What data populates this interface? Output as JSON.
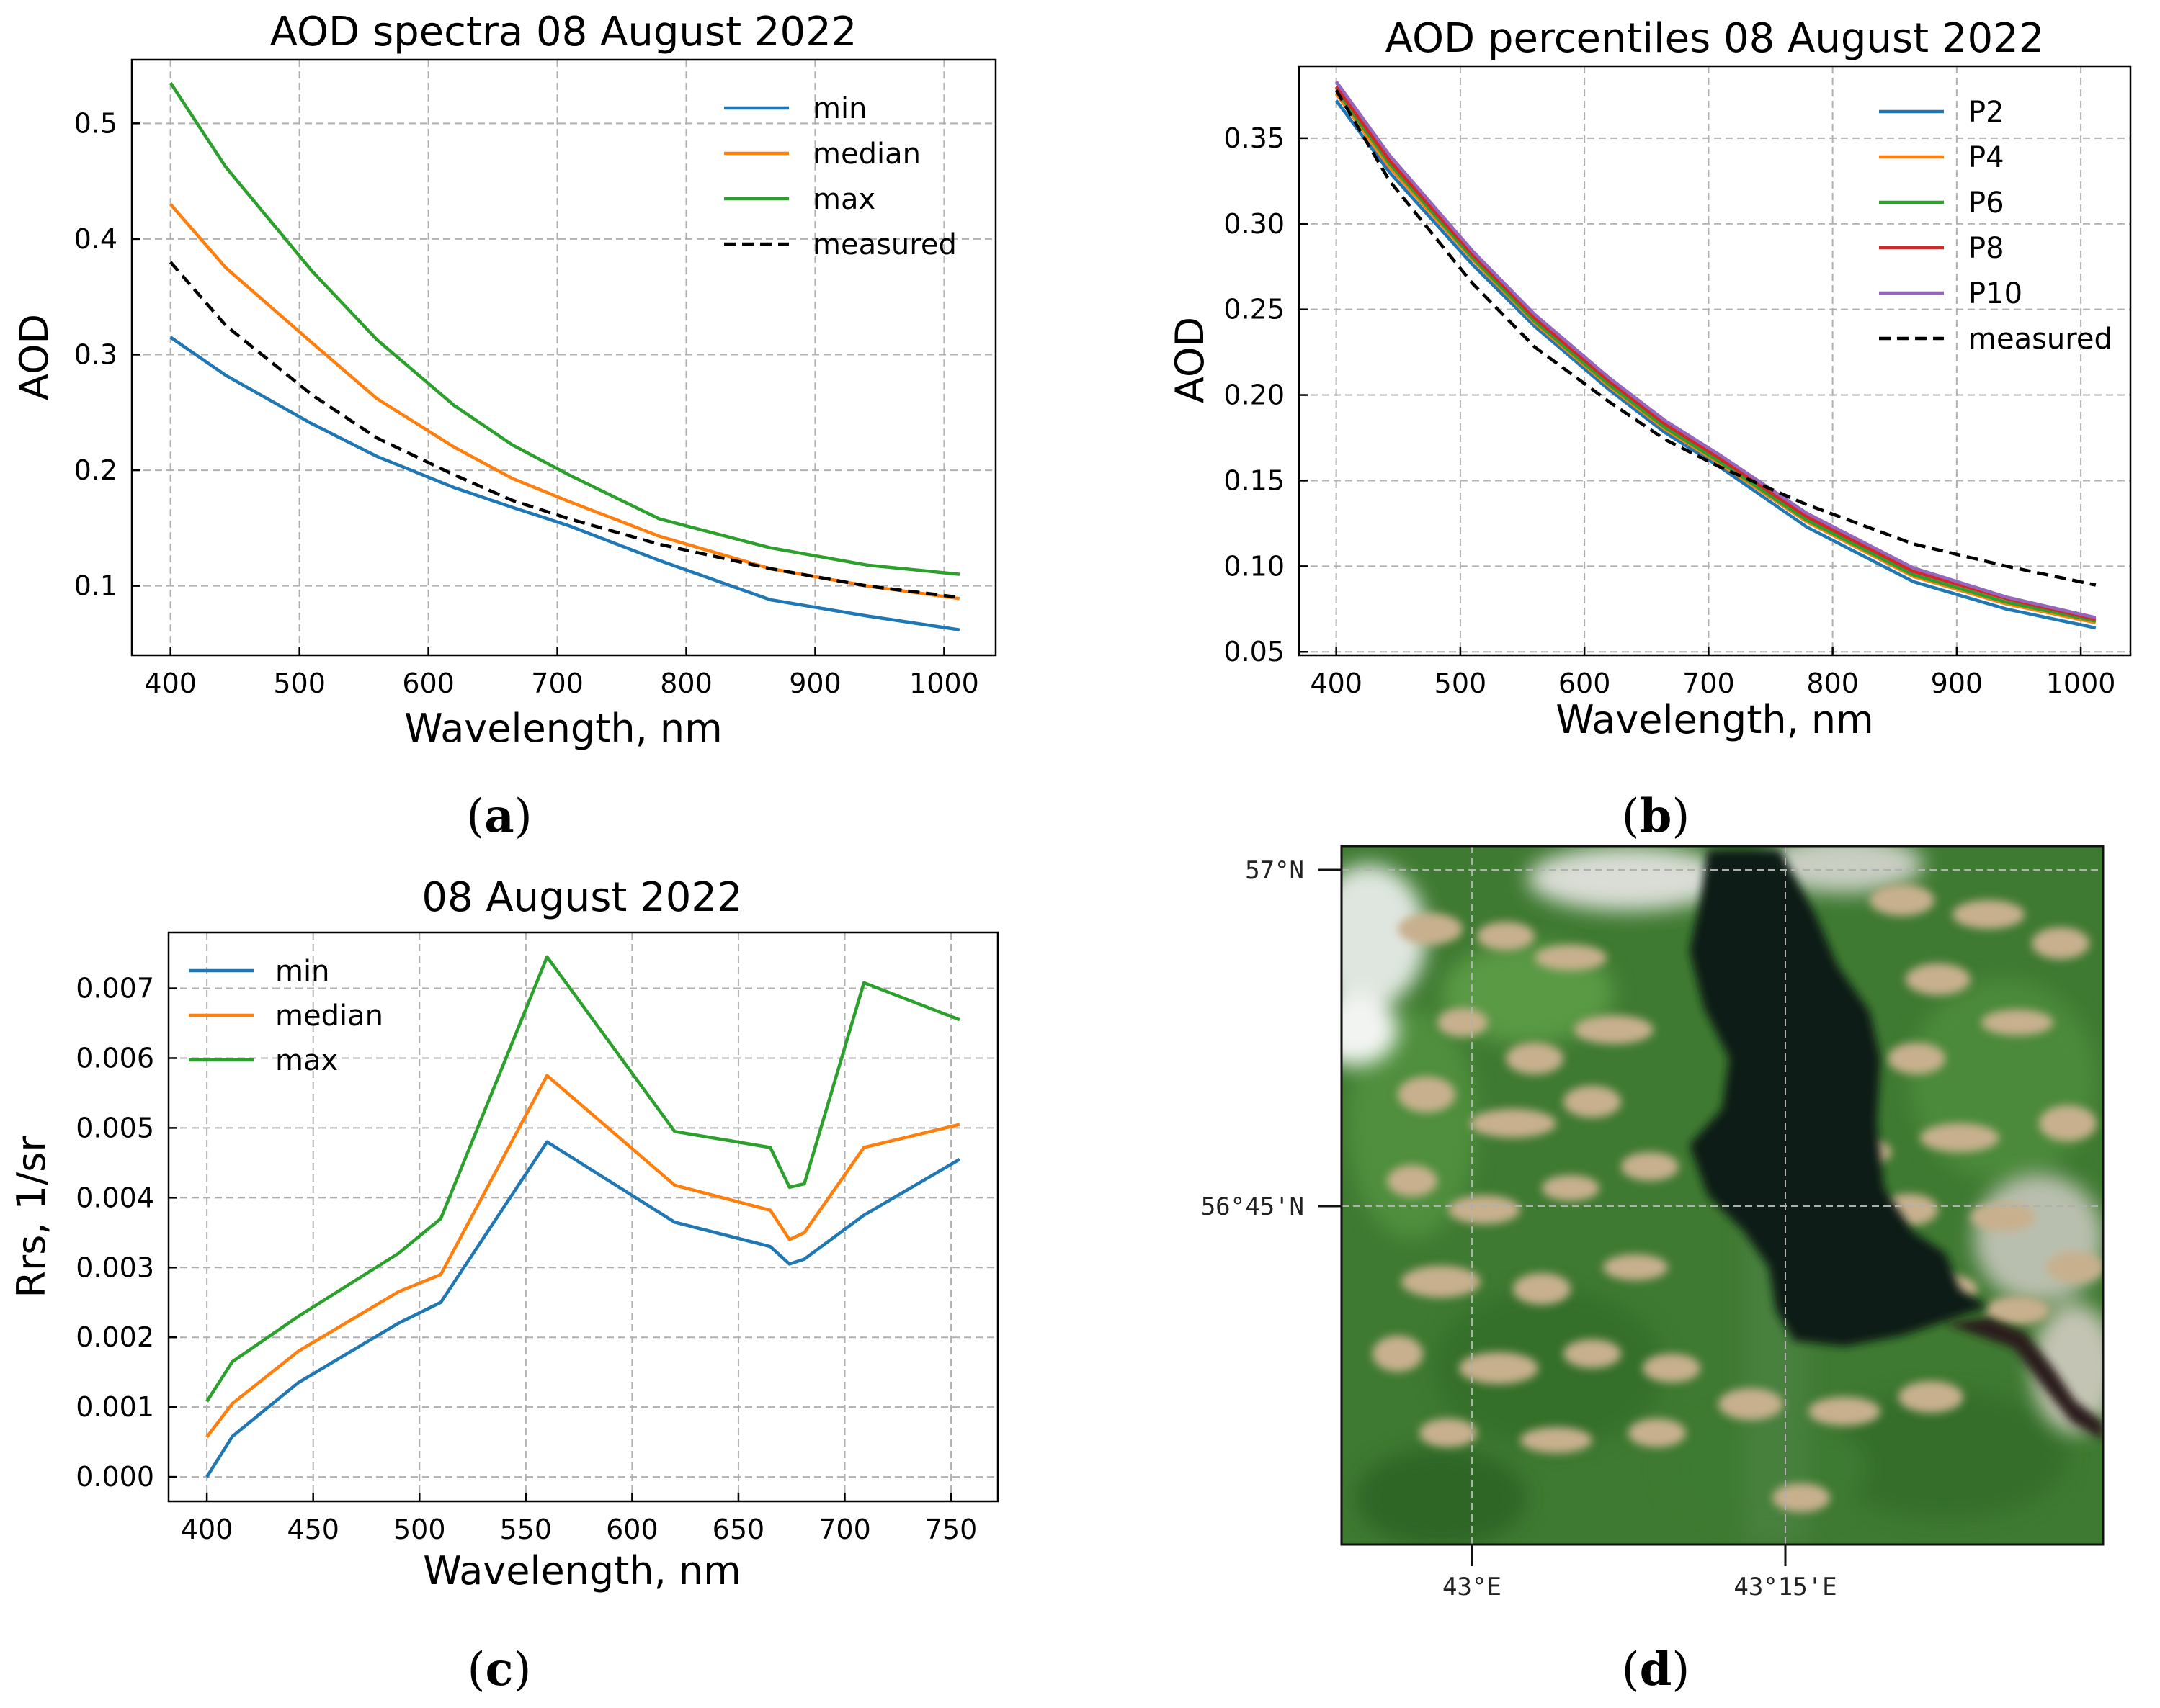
{
  "colors": {
    "blue": "#1f77b4",
    "orange": "#ff7f0e",
    "green": "#2ca02c",
    "red": "#d62728",
    "purple": "#9467bd",
    "black": "#000000"
  },
  "captions": {
    "a": "a",
    "b": "b",
    "c": "c",
    "d": "d"
  },
  "chart_data": [
    {
      "id": "a",
      "type": "line",
      "title": "AOD spectra 08 August 2022",
      "xlabel": "Wavelength, nm",
      "ylabel": "AOD",
      "xlim": [
        370,
        1040
      ],
      "ylim": [
        0.04,
        0.555
      ],
      "xticks": [
        400,
        500,
        600,
        700,
        800,
        900,
        1000
      ],
      "xtick_labels": [
        "400",
        "500",
        "600",
        "700",
        "800",
        "900",
        "1000"
      ],
      "yticks": [
        0.1,
        0.2,
        0.3,
        0.4,
        0.5
      ],
      "ytick_labels": [
        "0.1",
        "0.2",
        "0.3",
        "0.4",
        "0.5"
      ],
      "legend_position": "top-right",
      "series": [
        {
          "name": "min",
          "color": "#1f77b4",
          "x": [
            400,
            443,
            510,
            560,
            620,
            665,
            709,
            779,
            865,
            940,
            1012
          ],
          "y": [
            0.315,
            0.282,
            0.24,
            0.212,
            0.185,
            0.168,
            0.152,
            0.122,
            0.088,
            0.074,
            0.062
          ]
        },
        {
          "name": "median",
          "color": "#ff7f0e",
          "x": [
            400,
            443,
            510,
            560,
            620,
            665,
            709,
            779,
            865,
            940,
            1012
          ],
          "y": [
            0.43,
            0.375,
            0.31,
            0.262,
            0.22,
            0.193,
            0.173,
            0.143,
            0.115,
            0.1,
            0.089
          ]
        },
        {
          "name": "max",
          "color": "#2ca02c",
          "x": [
            400,
            443,
            510,
            560,
            620,
            665,
            709,
            779,
            865,
            940,
            1012
          ],
          "y": [
            0.535,
            0.462,
            0.372,
            0.313,
            0.256,
            0.222,
            0.196,
            0.158,
            0.133,
            0.118,
            0.11
          ]
        },
        {
          "name": "measured",
          "color": "#000000",
          "dashed": true,
          "x": [
            400,
            443,
            510,
            560,
            620,
            665,
            709,
            779,
            865,
            940,
            1012
          ],
          "y": [
            0.38,
            0.325,
            0.265,
            0.228,
            0.196,
            0.174,
            0.158,
            0.136,
            0.115,
            0.1,
            0.09
          ]
        }
      ]
    },
    {
      "id": "b",
      "type": "line",
      "title": "AOD percentiles 08 August 2022",
      "xlabel": "Wavelength, nm",
      "ylabel": "AOD",
      "xlim": [
        370,
        1040
      ],
      "ylim": [
        0.048,
        0.392
      ],
      "xticks": [
        400,
        500,
        600,
        700,
        800,
        900,
        1000
      ],
      "xtick_labels": [
        "400",
        "500",
        "600",
        "700",
        "800",
        "900",
        "1000"
      ],
      "yticks": [
        0.05,
        0.1,
        0.15,
        0.2,
        0.25,
        0.3,
        0.35
      ],
      "ytick_labels": [
        "0.05",
        "0.10",
        "0.15",
        "0.20",
        "0.25",
        "0.30",
        "0.35"
      ],
      "legend_position": "top-right",
      "series": [
        {
          "name": "P2",
          "color": "#1f77b4",
          "x": [
            400,
            443,
            510,
            560,
            620,
            665,
            709,
            779,
            865,
            940,
            1012
          ],
          "y": [
            0.372,
            0.33,
            0.276,
            0.24,
            0.203,
            0.178,
            0.158,
            0.123,
            0.091,
            0.075,
            0.064
          ]
        },
        {
          "name": "P4",
          "color": "#ff7f0e",
          "x": [
            400,
            443,
            510,
            560,
            620,
            665,
            709,
            779,
            865,
            940,
            1012
          ],
          "y": [
            0.376,
            0.333,
            0.279,
            0.242,
            0.205,
            0.18,
            0.16,
            0.126,
            0.094,
            0.078,
            0.067
          ]
        },
        {
          "name": "P6",
          "color": "#2ca02c",
          "x": [
            400,
            443,
            510,
            560,
            620,
            665,
            709,
            779,
            865,
            940,
            1012
          ],
          "y": [
            0.378,
            0.335,
            0.28,
            0.243,
            0.206,
            0.181,
            0.161,
            0.127,
            0.095,
            0.079,
            0.068
          ]
        },
        {
          "name": "P8",
          "color": "#d62728",
          "x": [
            400,
            443,
            510,
            560,
            620,
            665,
            709,
            779,
            865,
            940,
            1012
          ],
          "y": [
            0.38,
            0.337,
            0.282,
            0.245,
            0.208,
            0.183,
            0.163,
            0.129,
            0.097,
            0.081,
            0.069
          ]
        },
        {
          "name": "P10",
          "color": "#9467bd",
          "x": [
            400,
            443,
            510,
            560,
            620,
            665,
            709,
            779,
            865,
            940,
            1012
          ],
          "y": [
            0.383,
            0.34,
            0.284,
            0.247,
            0.21,
            0.185,
            0.165,
            0.131,
            0.099,
            0.082,
            0.07
          ]
        },
        {
          "name": "measured",
          "color": "#000000",
          "dashed": true,
          "x": [
            400,
            443,
            510,
            560,
            620,
            665,
            709,
            779,
            865,
            940,
            1012
          ],
          "y": [
            0.378,
            0.325,
            0.265,
            0.228,
            0.196,
            0.174,
            0.158,
            0.136,
            0.113,
            0.1,
            0.089
          ]
        }
      ]
    },
    {
      "id": "c",
      "type": "line",
      "title": "08 August 2022",
      "xlabel": "Wavelength, nm",
      "ylabel": "Rrs, 1/sr",
      "xlim": [
        382,
        772
      ],
      "ylim": [
        -0.00035,
        0.0078
      ],
      "xticks": [
        400,
        450,
        500,
        550,
        600,
        650,
        700,
        750
      ],
      "xtick_labels": [
        "400",
        "450",
        "500",
        "550",
        "600",
        "650",
        "700",
        "750"
      ],
      "yticks": [
        0,
        0.001,
        0.002,
        0.003,
        0.004,
        0.005,
        0.006,
        0.007
      ],
      "ytick_labels": [
        "0.000",
        "0.001",
        "0.002",
        "0.003",
        "0.004",
        "0.005",
        "0.006",
        "0.007"
      ],
      "legend_position": "top-left",
      "series": [
        {
          "name": "min",
          "color": "#1f77b4",
          "x": [
            400,
            412,
            443,
            490,
            510,
            560,
            620,
            665,
            674,
            681,
            709,
            754
          ],
          "y": [
            0.0,
            0.00058,
            0.00135,
            0.0022,
            0.0025,
            0.0048,
            0.00365,
            0.0033,
            0.00305,
            0.00312,
            0.00375,
            0.00455
          ]
        },
        {
          "name": "median",
          "color": "#ff7f0e",
          "x": [
            400,
            412,
            443,
            490,
            510,
            560,
            620,
            665,
            674,
            681,
            709,
            754
          ],
          "y": [
            0.00057,
            0.00105,
            0.0018,
            0.00265,
            0.0029,
            0.00575,
            0.00418,
            0.00382,
            0.0034,
            0.0035,
            0.00472,
            0.00505
          ]
        },
        {
          "name": "max",
          "color": "#2ca02c",
          "x": [
            400,
            412,
            443,
            490,
            510,
            560,
            620,
            665,
            674,
            681,
            709,
            754
          ],
          "y": [
            0.00108,
            0.00165,
            0.0023,
            0.0032,
            0.0037,
            0.00745,
            0.00495,
            0.00472,
            0.00415,
            0.0042,
            0.00708,
            0.00655
          ]
        }
      ]
    }
  ],
  "map": {
    "lat_labels": [
      "57°N",
      "56°45'N"
    ],
    "lon_labels": [
      "43°E",
      "43°15'E"
    ]
  }
}
